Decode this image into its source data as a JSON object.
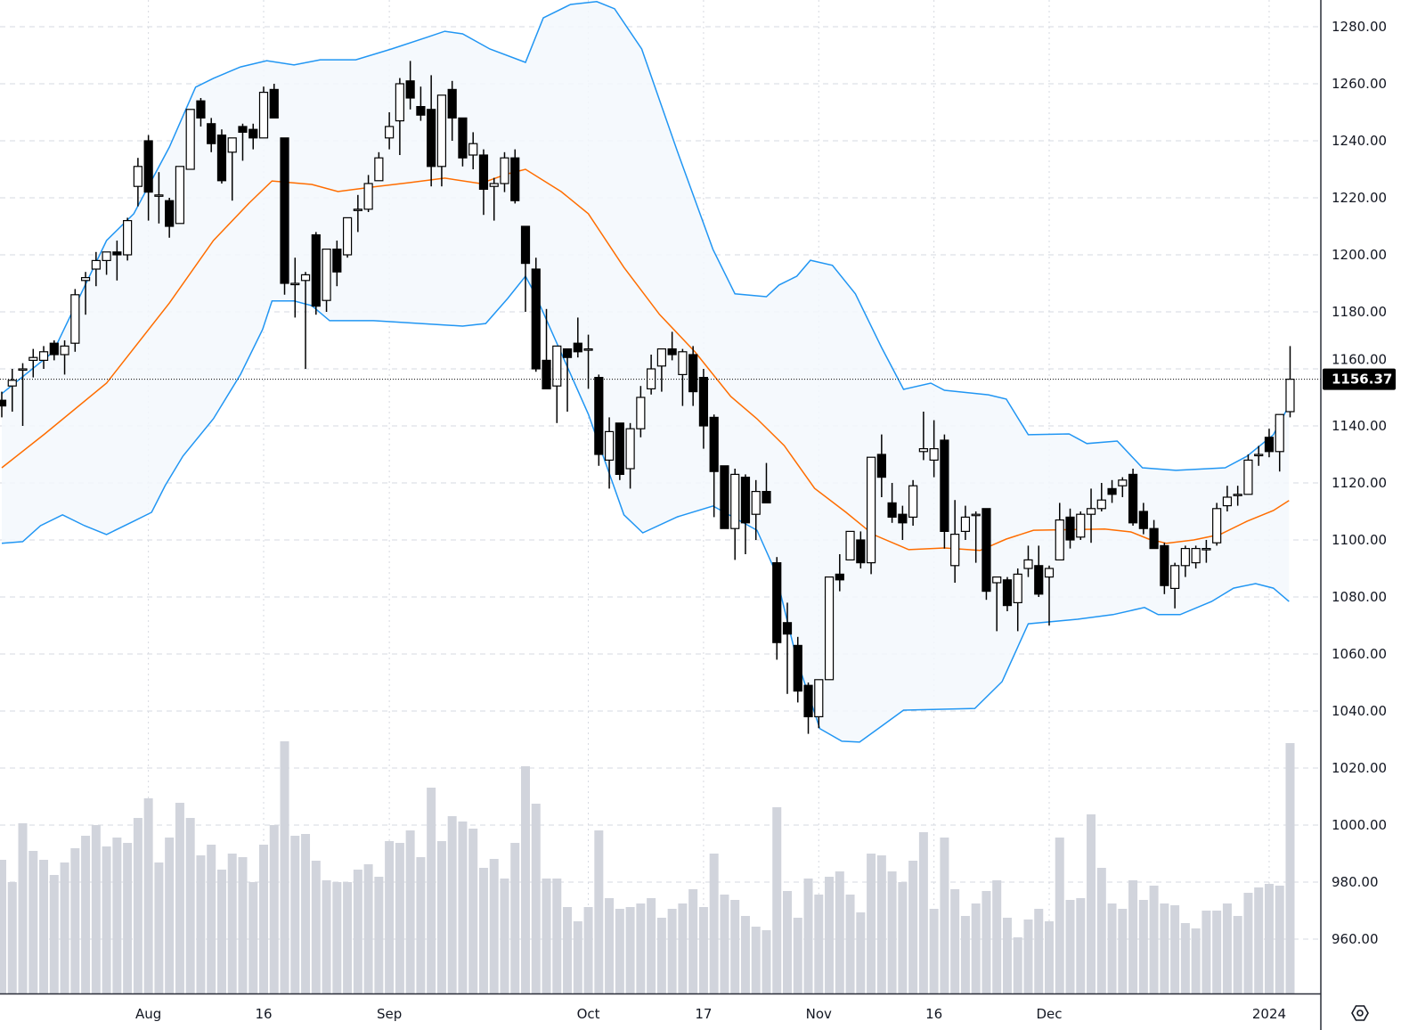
{
  "chart_data": {
    "type": "candlestick",
    "title": "",
    "indicators": [
      "Bollinger Bands (upper, basis, lower)",
      "Volume"
    ],
    "ylim": [
      954,
      1289
    ],
    "grid": true,
    "price_ticks": [
      "1280.00",
      "1260.00",
      "1240.00",
      "1220.00",
      "1200.00",
      "1180.00",
      "1160.00",
      "1140.00",
      "1120.00",
      "1100.00",
      "1080.00",
      "1060.00",
      "1040.00",
      "1020.00",
      "1000.00",
      "980.00",
      "960.00"
    ],
    "price_tick_values": [
      1280,
      1260,
      1240,
      1220,
      1200,
      1180,
      1160,
      1140,
      1120,
      1100,
      1080,
      1060,
      1040,
      1020,
      1000,
      980,
      960
    ],
    "x_ticks": [
      {
        "label": "Aug",
        "index": 14
      },
      {
        "label": "16",
        "index": 25
      },
      {
        "label": "Sep",
        "index": 37
      },
      {
        "label": "Oct",
        "index": 56
      },
      {
        "label": "17",
        "index": 67
      },
      {
        "label": "Nov",
        "index": 78
      },
      {
        "label": "16",
        "index": 89
      },
      {
        "label": "Dec",
        "index": 100
      },
      {
        "label": "2024",
        "index": 121
      }
    ],
    "last_price": 1156.37,
    "last_price_label": "1156.37",
    "ohlc": [
      [
        1149,
        1152,
        1143,
        1147
      ],
      [
        1154,
        1160,
        1145,
        1156
      ],
      [
        1160,
        1162,
        1140,
        1160
      ],
      [
        1163,
        1167,
        1157,
        1164
      ],
      [
        1163,
        1168,
        1160,
        1166
      ],
      [
        1169,
        1170,
        1163,
        1165
      ],
      [
        1165,
        1170,
        1158,
        1168
      ],
      [
        1169,
        1188,
        1166,
        1186
      ],
      [
        1191,
        1194,
        1179,
        1192
      ],
      [
        1195,
        1201,
        1189,
        1198
      ],
      [
        1198,
        1201,
        1193,
        1201
      ],
      [
        1201,
        1205,
        1191,
        1200
      ],
      [
        1200,
        1213,
        1198,
        1212
      ],
      [
        1224,
        1234,
        1217,
        1231
      ],
      [
        1240,
        1242,
        1212,
        1222
      ],
      [
        1221,
        1229,
        1211,
        1221
      ],
      [
        1219,
        1220,
        1206,
        1210
      ],
      [
        1211,
        1231,
        1211,
        1231
      ],
      [
        1230,
        1251,
        1230,
        1251
      ],
      [
        1254,
        1255,
        1245,
        1248
      ],
      [
        1246,
        1248,
        1236,
        1239
      ],
      [
        1242,
        1244,
        1225,
        1226
      ],
      [
        1236,
        1241,
        1219,
        1241
      ],
      [
        1245,
        1246,
        1233,
        1243
      ],
      [
        1244,
        1246,
        1237,
        1241
      ],
      [
        1241,
        1259,
        1241,
        1257
      ],
      [
        1258,
        1260,
        1248,
        1248
      ],
      [
        1241,
        1241,
        1186,
        1190
      ],
      [
        1190,
        1199,
        1178,
        1190
      ],
      [
        1191,
        1194,
        1160,
        1193
      ],
      [
        1207,
        1208,
        1179,
        1182
      ],
      [
        1184,
        1202,
        1180,
        1202
      ],
      [
        1202,
        1205,
        1189,
        1194
      ],
      [
        1200,
        1213,
        1199,
        1213
      ],
      [
        1216,
        1221,
        1208,
        1216
      ],
      [
        1216,
        1228,
        1215,
        1225
      ],
      [
        1226,
        1236,
        1226,
        1234
      ],
      [
        1241,
        1250,
        1237,
        1245
      ],
      [
        1247,
        1262,
        1235,
        1260
      ],
      [
        1261,
        1268,
        1251,
        1255
      ],
      [
        1252,
        1259,
        1247,
        1249
      ],
      [
        1251,
        1263,
        1224,
        1231
      ],
      [
        1231,
        1256,
        1224,
        1256
      ],
      [
        1258,
        1261,
        1240,
        1248
      ],
      [
        1248,
        1245,
        1231,
        1234
      ],
      [
        1235,
        1243,
        1230,
        1239
      ],
      [
        1235,
        1237,
        1214,
        1223
      ],
      [
        1224,
        1227,
        1212,
        1225
      ],
      [
        1225,
        1236,
        1222,
        1234
      ],
      [
        1234,
        1237,
        1218,
        1219
      ],
      [
        1210,
        1210,
        1180,
        1197
      ],
      [
        1195,
        1199,
        1159,
        1160
      ],
      [
        1163,
        1181,
        1153,
        1153
      ],
      [
        1154,
        1168,
        1141,
        1168
      ],
      [
        1167,
        1167,
        1145,
        1164
      ],
      [
        1169,
        1178,
        1164,
        1166
      ],
      [
        1167,
        1172,
        1153,
        1167
      ],
      [
        1157,
        1158,
        1126,
        1130
      ],
      [
        1128,
        1143,
        1118,
        1138
      ],
      [
        1141,
        1141,
        1121,
        1123
      ],
      [
        1125,
        1141,
        1118,
        1139
      ],
      [
        1139,
        1154,
        1136,
        1150
      ],
      [
        1153,
        1165,
        1151,
        1160
      ],
      [
        1161,
        1167,
        1152,
        1167
      ],
      [
        1167,
        1173,
        1163,
        1165
      ],
      [
        1158,
        1167,
        1147,
        1166
      ],
      [
        1165,
        1168,
        1147,
        1152
      ],
      [
        1157,
        1160,
        1132,
        1140
      ],
      [
        1143,
        1144,
        1108,
        1124
      ],
      [
        1126,
        1126,
        1104,
        1104
      ],
      [
        1104,
        1125,
        1093,
        1123
      ],
      [
        1122,
        1123,
        1095,
        1106
      ],
      [
        1109,
        1121,
        1100,
        1117
      ],
      [
        1117,
        1127,
        1113,
        1113
      ],
      [
        1092,
        1094,
        1058,
        1064
      ],
      [
        1071,
        1078,
        1046,
        1067
      ],
      [
        1063,
        1066,
        1043,
        1047
      ],
      [
        1049,
        1050,
        1032,
        1038
      ],
      [
        1038,
        1051,
        1034,
        1051
      ],
      [
        1051,
        1087,
        1051,
        1087
      ],
      [
        1088,
        1095,
        1082,
        1086
      ],
      [
        1093,
        1103,
        1093,
        1103
      ],
      [
        1100,
        1103,
        1090,
        1092
      ],
      [
        1092,
        1129,
        1088,
        1129
      ],
      [
        1130,
        1137,
        1115,
        1122
      ],
      [
        1113,
        1120,
        1106,
        1108
      ],
      [
        1109,
        1112,
        1100,
        1106
      ],
      [
        1108,
        1121,
        1105,
        1119
      ],
      [
        1131,
        1145,
        1128,
        1132
      ],
      [
        1128,
        1142,
        1122,
        1132
      ],
      [
        1135,
        1137,
        1097,
        1103
      ],
      [
        1091,
        1114,
        1085,
        1102
      ],
      [
        1103,
        1112,
        1100,
        1108
      ],
      [
        1109,
        1110,
        1092,
        1109
      ],
      [
        1111,
        1111,
        1079,
        1082
      ],
      [
        1085,
        1087,
        1068,
        1087
      ],
      [
        1086,
        1087,
        1075,
        1077
      ],
      [
        1078,
        1090,
        1068,
        1088
      ],
      [
        1090,
        1098,
        1087,
        1093
      ],
      [
        1091,
        1098,
        1080,
        1081
      ],
      [
        1087,
        1091,
        1070,
        1090
      ],
      [
        1093,
        1113,
        1093,
        1107
      ],
      [
        1108,
        1111,
        1097,
        1100
      ],
      [
        1101,
        1110,
        1100,
        1109
      ],
      [
        1109,
        1118,
        1099,
        1111
      ],
      [
        1111,
        1120,
        1110,
        1114
      ],
      [
        1118,
        1121,
        1113,
        1116
      ],
      [
        1119,
        1122,
        1115,
        1121
      ],
      [
        1123,
        1125,
        1105,
        1106
      ],
      [
        1110,
        1113,
        1102,
        1104
      ],
      [
        1104,
        1107,
        1097,
        1097
      ],
      [
        1098,
        1099,
        1081,
        1084
      ],
      [
        1083,
        1092,
        1076,
        1091
      ],
      [
        1091,
        1098,
        1087,
        1097
      ],
      [
        1092,
        1098,
        1090,
        1097
      ],
      [
        1097,
        1100,
        1092,
        1097
      ],
      [
        1099,
        1113,
        1098,
        1111
      ],
      [
        1112,
        1119,
        1110,
        1115
      ],
      [
        1116,
        1119,
        1112,
        1116
      ],
      [
        1116,
        1130,
        1116,
        1128
      ],
      [
        1130,
        1133,
        1126,
        1130
      ],
      [
        1136,
        1139,
        1129,
        1131
      ],
      [
        1131,
        1144,
        1124,
        1144
      ],
      [
        1145,
        1168,
        1143,
        1156.37
      ]
    ],
    "volume": [
      150,
      125,
      191,
      160,
      150,
      133,
      147,
      163,
      177,
      189,
      165,
      175,
      169,
      197,
      219,
      147,
      175,
      214,
      197,
      155,
      167,
      139,
      157,
      153,
      125,
      167,
      189,
      283,
      177,
      179,
      149,
      127,
      125,
      125,
      139,
      145,
      131,
      171,
      169,
      183,
      153,
      231,
      171,
      199,
      193,
      185,
      141,
      151,
      129,
      169,
      255,
      213,
      129,
      129,
      97,
      81,
      97,
      183,
      107,
      95,
      97,
      101,
      107,
      85,
      95,
      101,
      117,
      97,
      157,
      111,
      105,
      87,
      75,
      71,
      209,
      115,
      85,
      129,
      111,
      131,
      137,
      111,
      91,
      157,
      155,
      137,
      125,
      149,
      181,
      95,
      175,
      117,
      87,
      101,
      115,
      127,
      85,
      63,
      83,
      95,
      81,
      175,
      105,
      107,
      201,
      141,
      101,
      95,
      127,
      105,
      121,
      101,
      99,
      79,
      73,
      93,
      93,
      101,
      87,
      113,
      119,
      123,
      121,
      281
    ],
    "bollinger_upper": [
      [
        0,
        1151.3
      ],
      [
        4.9,
        1165.9
      ],
      [
        10,
        1205
      ],
      [
        12.6,
        1214.4
      ],
      [
        16,
        1237.8
      ],
      [
        18.5,
        1258.8
      ],
      [
        20.2,
        1261.9
      ],
      [
        22.8,
        1265.9
      ],
      [
        25.3,
        1268.1
      ],
      [
        27.9,
        1266.6
      ],
      [
        30.4,
        1268.4
      ],
      [
        33.8,
        1268.4
      ],
      [
        37.2,
        1272.2
      ],
      [
        40.6,
        1276.3
      ],
      [
        42.3,
        1278.4
      ],
      [
        44,
        1277.5
      ],
      [
        46.6,
        1272.2
      ],
      [
        50,
        1267.5
      ],
      [
        51.7,
        1283.1
      ],
      [
        54.3,
        1287.8
      ],
      [
        56.8,
        1288.8
      ],
      [
        58.5,
        1286.3
      ],
      [
        61.1,
        1272.2
      ],
      [
        64.5,
        1236.3
      ],
      [
        67.9,
        1201.9
      ],
      [
        70,
        1186.3
      ],
      [
        73,
        1185.3
      ],
      [
        74.2,
        1189.4
      ],
      [
        75.9,
        1192.5
      ],
      [
        77.2,
        1198.1
      ],
      [
        79.3,
        1196.3
      ],
      [
        81.5,
        1186.3
      ],
      [
        84,
        1167.5
      ],
      [
        86.1,
        1152.8
      ],
      [
        88.7,
        1155
      ],
      [
        90,
        1152.5
      ],
      [
        94.2,
        1150.9
      ],
      [
        95.9,
        1149.4
      ],
      [
        98,
        1136.9
      ],
      [
        101.9,
        1137.2
      ],
      [
        103.6,
        1133.8
      ],
      [
        106.5,
        1134.7
      ],
      [
        108.9,
        1125.3
      ],
      [
        112.1,
        1124.4
      ],
      [
        116.8,
        1125.3
      ],
      [
        118.9,
        1129.4
      ],
      [
        121.4,
        1136.9
      ],
      [
        122.9,
        1147.2
      ]
    ],
    "bollinger_basis": [
      [
        0,
        1125.3
      ],
      [
        4.1,
        1137.2
      ],
      [
        10,
        1155
      ],
      [
        16,
        1183.1
      ],
      [
        20.2,
        1205
      ],
      [
        23.6,
        1218.1
      ],
      [
        25.8,
        1225.9
      ],
      [
        29.6,
        1224.7
      ],
      [
        32.1,
        1222.2
      ],
      [
        35.5,
        1223.8
      ],
      [
        38.9,
        1225.3
      ],
      [
        42.3,
        1226.9
      ],
      [
        45.7,
        1225
      ],
      [
        48.3,
        1228.4
      ],
      [
        50,
        1230
      ],
      [
        53.4,
        1222.2
      ],
      [
        56,
        1214.4
      ],
      [
        59.4,
        1195.6
      ],
      [
        62.8,
        1179.1
      ],
      [
        66.2,
        1165.9
      ],
      [
        67.9,
        1158.1
      ],
      [
        69.6,
        1150.3
      ],
      [
        72.1,
        1142.5
      ],
      [
        74.7,
        1133.1
      ],
      [
        77.6,
        1118.1
      ],
      [
        80.6,
        1109.7
      ],
      [
        83.2,
        1101.9
      ],
      [
        86.6,
        1096.6
      ],
      [
        90,
        1097.2
      ],
      [
        93.4,
        1096.3
      ],
      [
        95.9,
        1100.3
      ],
      [
        98.5,
        1103.4
      ],
      [
        105.3,
        1103.8
      ],
      [
        107.8,
        1102.8
      ],
      [
        109.5,
        1100.3
      ],
      [
        111.2,
        1098.8
      ],
      [
        113.8,
        1100
      ],
      [
        116.3,
        1101.9
      ],
      [
        118.9,
        1106.6
      ],
      [
        121.4,
        1110.3
      ],
      [
        122.9,
        1113.8
      ]
    ],
    "bollinger_lower": [
      [
        0,
        1098.8
      ],
      [
        2,
        1099.4
      ],
      [
        3.7,
        1105
      ],
      [
        5.8,
        1108.8
      ],
      [
        7.9,
        1105
      ],
      [
        10,
        1101.9
      ],
      [
        12.6,
        1106.6
      ],
      [
        14.3,
        1109.7
      ],
      [
        15.6,
        1119.1
      ],
      [
        17.3,
        1129.4
      ],
      [
        20.2,
        1142.5
      ],
      [
        22.8,
        1158.1
      ],
      [
        24.9,
        1173.8
      ],
      [
        25.8,
        1183.8
      ],
      [
        27.9,
        1183.8
      ],
      [
        29.6,
        1182.2
      ],
      [
        31.3,
        1176.9
      ],
      [
        35.5,
        1176.9
      ],
      [
        44,
        1175
      ],
      [
        46.2,
        1175.9
      ],
      [
        48.3,
        1184.7
      ],
      [
        50,
        1192.5
      ],
      [
        50.9,
        1186.3
      ],
      [
        56,
        1144.1
      ],
      [
        59.4,
        1108.8
      ],
      [
        61.2,
        1102.5
      ],
      [
        64.5,
        1108.1
      ],
      [
        67.9,
        1111.9
      ],
      [
        72.1,
        1103.4
      ],
      [
        73.8,
        1089.4
      ],
      [
        75.9,
        1058.1
      ],
      [
        78.1,
        1033.8
      ],
      [
        80.2,
        1029.4
      ],
      [
        81.9,
        1029.1
      ],
      [
        84,
        1034.7
      ],
      [
        86.1,
        1040.3
      ],
      [
        92.9,
        1040.9
      ],
      [
        95.5,
        1050.3
      ],
      [
        98,
        1070.6
      ],
      [
        102.7,
        1072.2
      ],
      [
        106.1,
        1073.8
      ],
      [
        109.1,
        1076.3
      ],
      [
        110.4,
        1073.8
      ],
      [
        112.5,
        1073.8
      ],
      [
        115.5,
        1078.4
      ],
      [
        117.6,
        1083.1
      ],
      [
        119.7,
        1084.7
      ],
      [
        121.4,
        1083.1
      ],
      [
        122.9,
        1078.4
      ]
    ],
    "colors": {
      "up": "#ffffff",
      "down": "#000000",
      "band": "#2196f3",
      "basis": "#ff6d00",
      "band_fill": "#f3f8fd",
      "volume": "#d1d4dc"
    }
  }
}
